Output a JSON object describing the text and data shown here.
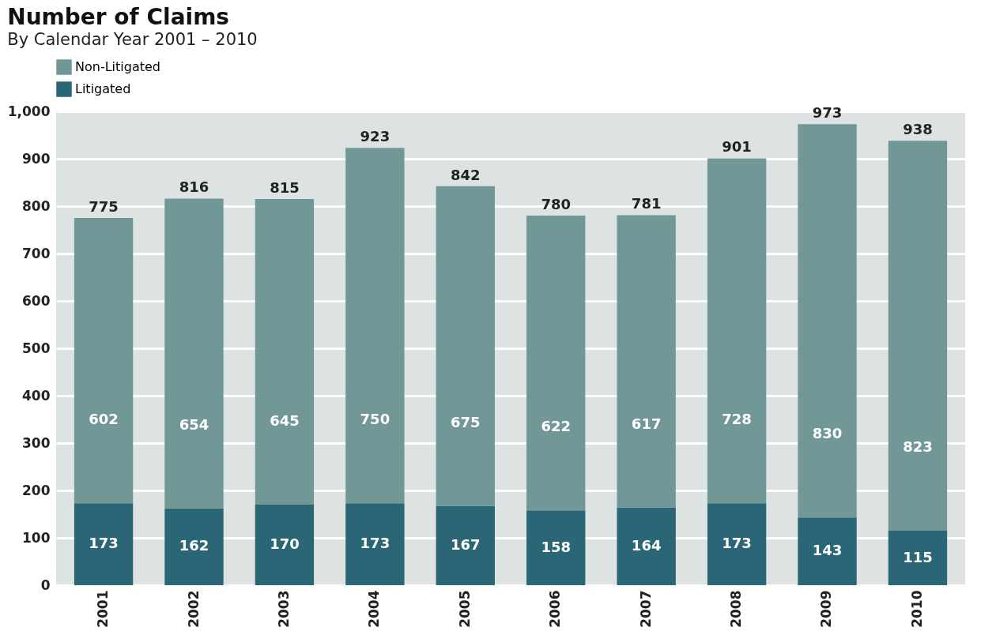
{
  "chart_data": {
    "type": "bar",
    "title": "Number of Claims",
    "subtitle": "By Calendar Year 2001 – 2010",
    "categories": [
      "2001",
      "2002",
      "2003",
      "2004",
      "2005",
      "2006",
      "2007",
      "2008",
      "2009",
      "2010"
    ],
    "series": [
      {
        "name": "Litigated",
        "color": "#2a6675",
        "values": [
          173,
          162,
          170,
          173,
          167,
          158,
          164,
          173,
          143,
          115
        ]
      },
      {
        "name": "Non-Litigated",
        "color": "#729797",
        "values": [
          602,
          654,
          645,
          750,
          675,
          622,
          617,
          728,
          830,
          823
        ]
      }
    ],
    "stacked": true,
    "data_labels": true,
    "totals": [
      "775",
      "816",
      "815",
      "923",
      "842",
      "780",
      "781",
      "901",
      "973",
      "938"
    ],
    "ylim": [
      0,
      1000
    ],
    "yticks": [
      0,
      100,
      200,
      300,
      400,
      500,
      600,
      700,
      800,
      900,
      {
        "value": 1000,
        "label": "1,000"
      }
    ],
    "grid": "y",
    "legend": "top"
  }
}
